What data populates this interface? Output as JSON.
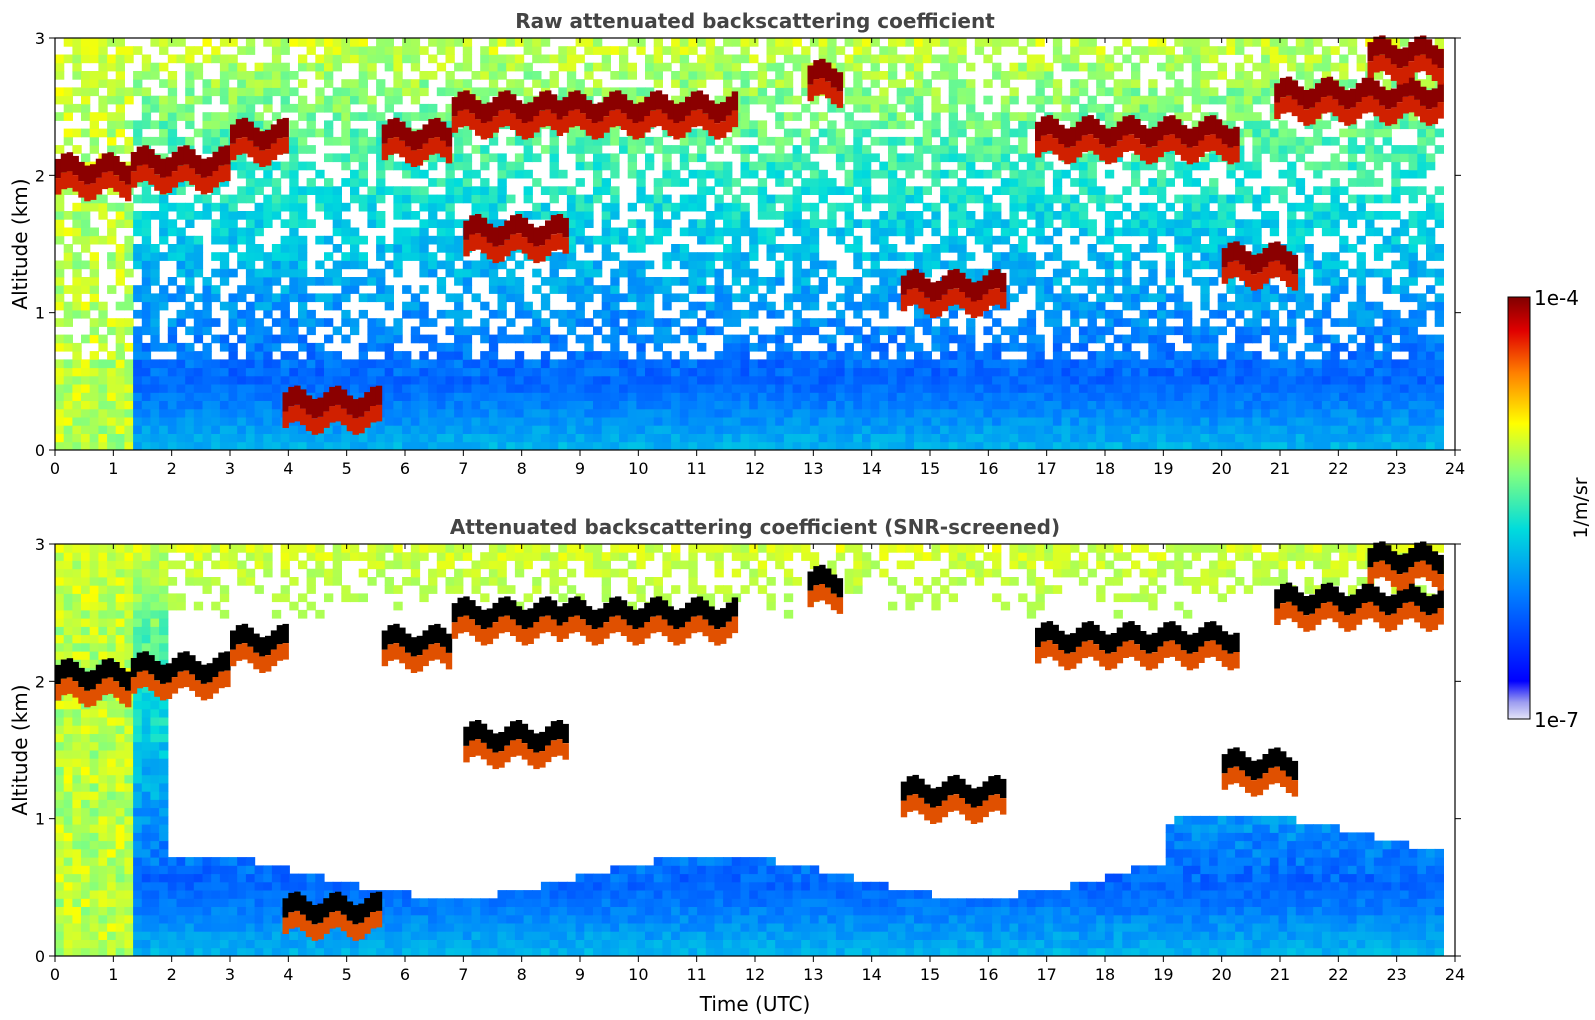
{
  "chart_data": [
    {
      "type": "heatmap",
      "title": "Raw attenuated backscattering coefficient",
      "xlabel": "",
      "ylabel": "Altitude (km)",
      "xlim": [
        0,
        24
      ],
      "ylim": [
        0,
        3
      ],
      "x_ticks": [
        "0",
        "1",
        "2",
        "3",
        "4",
        "5",
        "6",
        "7",
        "8",
        "9",
        "10",
        "11",
        "12",
        "13",
        "14",
        "15",
        "16",
        "17",
        "18",
        "19",
        "20",
        "21",
        "22",
        "23",
        "24"
      ],
      "y_ticks": [
        "0",
        "1",
        "2",
        "3"
      ],
      "screened": false,
      "cloud_features": [
        {
          "t0": 0.0,
          "t1": 1.3,
          "z": 2.05
        },
        {
          "t0": 1.3,
          "t1": 3.0,
          "z": 2.1
        },
        {
          "t0": 3.0,
          "t1": 4.0,
          "z": 2.3
        },
        {
          "t0": 3.9,
          "t1": 5.6,
          "z": 0.35
        },
        {
          "t0": 5.6,
          "t1": 6.8,
          "z": 2.3
        },
        {
          "t0": 6.8,
          "t1": 8.7,
          "z": 2.5
        },
        {
          "t0": 7.0,
          "t1": 8.8,
          "z": 1.6
        },
        {
          "t0": 8.7,
          "t1": 11.7,
          "z": 2.5
        },
        {
          "t0": 12.9,
          "t1": 13.5,
          "z": 2.73
        },
        {
          "t0": 14.5,
          "t1": 16.3,
          "z": 1.2
        },
        {
          "t0": 16.8,
          "t1": 20.3,
          "z": 2.32
        },
        {
          "t0": 20.0,
          "t1": 21.3,
          "z": 1.4
        },
        {
          "t0": 20.9,
          "t1": 23.8,
          "z": 2.6
        },
        {
          "t0": 22.5,
          "t1": 23.8,
          "z": 2.9
        }
      ]
    },
    {
      "type": "heatmap",
      "title": "Attenuated backscattering coefficient (SNR-screened)",
      "xlabel": "Time (UTC)",
      "ylabel": "Altitude (km)",
      "xlim": [
        0,
        24
      ],
      "ylim": [
        0,
        3
      ],
      "x_ticks": [
        "0",
        "1",
        "2",
        "3",
        "4",
        "5",
        "6",
        "7",
        "8",
        "9",
        "10",
        "11",
        "12",
        "13",
        "14",
        "15",
        "16",
        "17",
        "18",
        "19",
        "20",
        "21",
        "22",
        "23",
        "24"
      ],
      "y_ticks": [
        "0",
        "1",
        "2",
        "3"
      ],
      "screened": true,
      "cloud_features": [
        {
          "t0": 0.0,
          "t1": 1.3,
          "z": 2.05
        },
        {
          "t0": 1.3,
          "t1": 3.0,
          "z": 2.1
        },
        {
          "t0": 3.0,
          "t1": 4.0,
          "z": 2.3
        },
        {
          "t0": 3.9,
          "t1": 5.6,
          "z": 0.35
        },
        {
          "t0": 5.6,
          "t1": 6.8,
          "z": 2.3
        },
        {
          "t0": 6.8,
          "t1": 8.7,
          "z": 2.5
        },
        {
          "t0": 7.0,
          "t1": 8.8,
          "z": 1.6
        },
        {
          "t0": 8.7,
          "t1": 11.7,
          "z": 2.5
        },
        {
          "t0": 12.9,
          "t1": 13.5,
          "z": 2.73
        },
        {
          "t0": 14.5,
          "t1": 16.3,
          "z": 1.2
        },
        {
          "t0": 16.8,
          "t1": 20.3,
          "z": 2.32
        },
        {
          "t0": 20.0,
          "t1": 21.3,
          "z": 1.4
        },
        {
          "t0": 20.9,
          "t1": 23.8,
          "z": 2.6
        },
        {
          "t0": 22.5,
          "t1": 23.8,
          "z": 2.9
        }
      ]
    }
  ],
  "colorbar": {
    "label": "1/m/sr",
    "max_label": "1e-4",
    "min_label": "1e-7",
    "range": [
      1e-07,
      0.0001
    ],
    "scale": "log",
    "colormap": "jet"
  }
}
